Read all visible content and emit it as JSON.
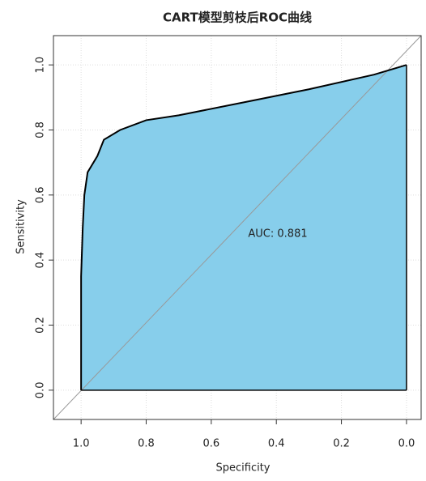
{
  "chart_data": {
    "type": "roc",
    "title": "CART模型剪枝后ROC曲线",
    "xlabel": "Specificity",
    "ylabel": "Sensitivity",
    "annotation": "AUC: 0.881",
    "x": [
      1,
      1,
      0.995,
      0.99,
      0.98,
      0.95,
      0.93,
      0.88,
      0.8,
      0.7,
      0.5,
      0.3,
      0.1,
      0
    ],
    "values": [
      0,
      0.35,
      0.5,
      0.6,
      0.67,
      0.72,
      0.77,
      0.8,
      0.83,
      0.845,
      0.885,
      0.925,
      0.97,
      1
    ],
    "color": "#87ceeb",
    "line_color": "#000000",
    "xlim": [
      1.085,
      -0.045
    ],
    "ylim": [
      -0.09,
      1.09
    ],
    "xticks": [
      {
        "value": 1,
        "label": "1.0"
      },
      0.8,
      0.6,
      0.4,
      0.2,
      {
        "value": 0,
        "label": "0.0"
      }
    ],
    "yticks": [
      {
        "value": 0,
        "label": "0.0"
      },
      0.2,
      0.4,
      0.6,
      0.8,
      {
        "value": 1,
        "label": "1.0"
      }
    ],
    "grid": true
  }
}
